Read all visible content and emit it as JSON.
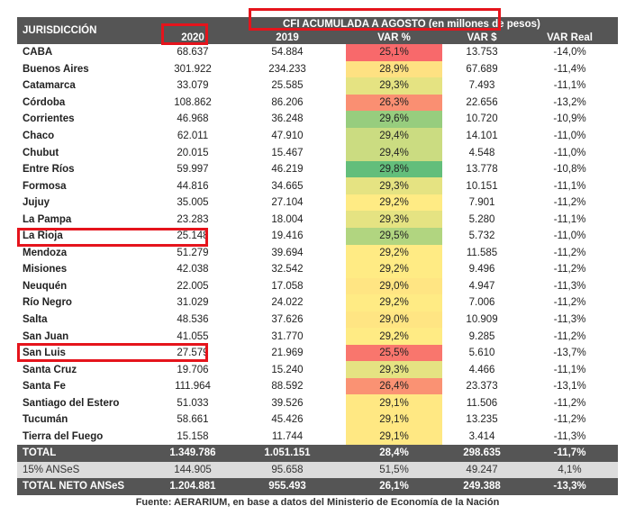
{
  "header": {
    "jurisdiccion": "JURISDICCIÓN",
    "title": "CFI ACUMULADA A AGOSTO (en millones de pesos)",
    "cols": [
      "2020",
      "2019",
      "VAR %",
      "VAR $",
      "VAR Real"
    ]
  },
  "rows": [
    [
      "CABA",
      "68.637",
      "54.884",
      "25,1%",
      "13.753",
      "-14,0%"
    ],
    [
      "Buenos Aires",
      "301.922",
      "234.233",
      "28,9%",
      "67.689",
      "-11,4%"
    ],
    [
      "Catamarca",
      "33.079",
      "25.585",
      "29,3%",
      "7.493",
      "-11,1%"
    ],
    [
      "Córdoba",
      "108.862",
      "86.206",
      "26,3%",
      "22.656",
      "-13,2%"
    ],
    [
      "Corrientes",
      "46.968",
      "36.248",
      "29,6%",
      "10.720",
      "-10,9%"
    ],
    [
      "Chaco",
      "62.011",
      "47.910",
      "29,4%",
      "14.101",
      "-11,0%"
    ],
    [
      "Chubut",
      "20.015",
      "15.467",
      "29,4%",
      "4.548",
      "-11,0%"
    ],
    [
      "Entre Ríos",
      "59.997",
      "46.219",
      "29,8%",
      "13.778",
      "-10,8%"
    ],
    [
      "Formosa",
      "44.816",
      "34.665",
      "29,3%",
      "10.151",
      "-11,1%"
    ],
    [
      "Jujuy",
      "35.005",
      "27.104",
      "29,2%",
      "7.901",
      "-11,2%"
    ],
    [
      "La Pampa",
      "23.283",
      "18.004",
      "29,3%",
      "5.280",
      "-11,1%"
    ],
    [
      "La Rioja",
      "25.148",
      "19.416",
      "29,5%",
      "5.732",
      "-11,0%"
    ],
    [
      "Mendoza",
      "51.279",
      "39.694",
      "29,2%",
      "11.585",
      "-11,2%"
    ],
    [
      "Misiones",
      "42.038",
      "32.542",
      "29,2%",
      "9.496",
      "-11,2%"
    ],
    [
      "Neuquén",
      "22.005",
      "17.058",
      "29,0%",
      "4.947",
      "-11,3%"
    ],
    [
      "Río Negro",
      "31.029",
      "24.022",
      "29,2%",
      "7.006",
      "-11,2%"
    ],
    [
      "Salta",
      "48.536",
      "37.626",
      "29,0%",
      "10.909",
      "-11,3%"
    ],
    [
      "San Juan",
      "41.055",
      "31.770",
      "29,2%",
      "9.285",
      "-11,2%"
    ],
    [
      "San Luis",
      "27.579",
      "21.969",
      "25,5%",
      "5.610",
      "-13,7%"
    ],
    [
      "Santa Cruz",
      "19.706",
      "15.240",
      "29,3%",
      "4.466",
      "-11,1%"
    ],
    [
      "Santa Fe",
      "111.964",
      "88.592",
      "26,4%",
      "23.373",
      "-13,1%"
    ],
    [
      "Santiago del Estero",
      "51.033",
      "39.526",
      "29,1%",
      "11.506",
      "-11,2%"
    ],
    [
      "Tucumán",
      "58.661",
      "45.426",
      "29,1%",
      "13.235",
      "-11,2%"
    ],
    [
      "Tierra del Fuego",
      "15.158",
      "11.744",
      "29,1%",
      "3.414",
      "-11,3%"
    ]
  ],
  "total": [
    "TOTAL",
    "1.349.786",
    "1.051.151",
    "28,4%",
    "298.635",
    "-11,7%"
  ],
  "ansesRow": [
    "15% ANSeS",
    "144.905",
    "95.658",
    "51,5%",
    "49.247",
    "4,1%"
  ],
  "neto": [
    "TOTAL NETO ANSeS",
    "1.204.881",
    "955.493",
    "26,1%",
    "249.388",
    "-13,3%"
  ],
  "source": "Fuente: AERARIUM, en base a datos del Ministerio de Economía de la Nación",
  "colors": {
    "low": "#f8696b",
    "mid": "#ffeb84",
    "high": "#63be7b",
    "highlight": "#e5141c"
  }
}
